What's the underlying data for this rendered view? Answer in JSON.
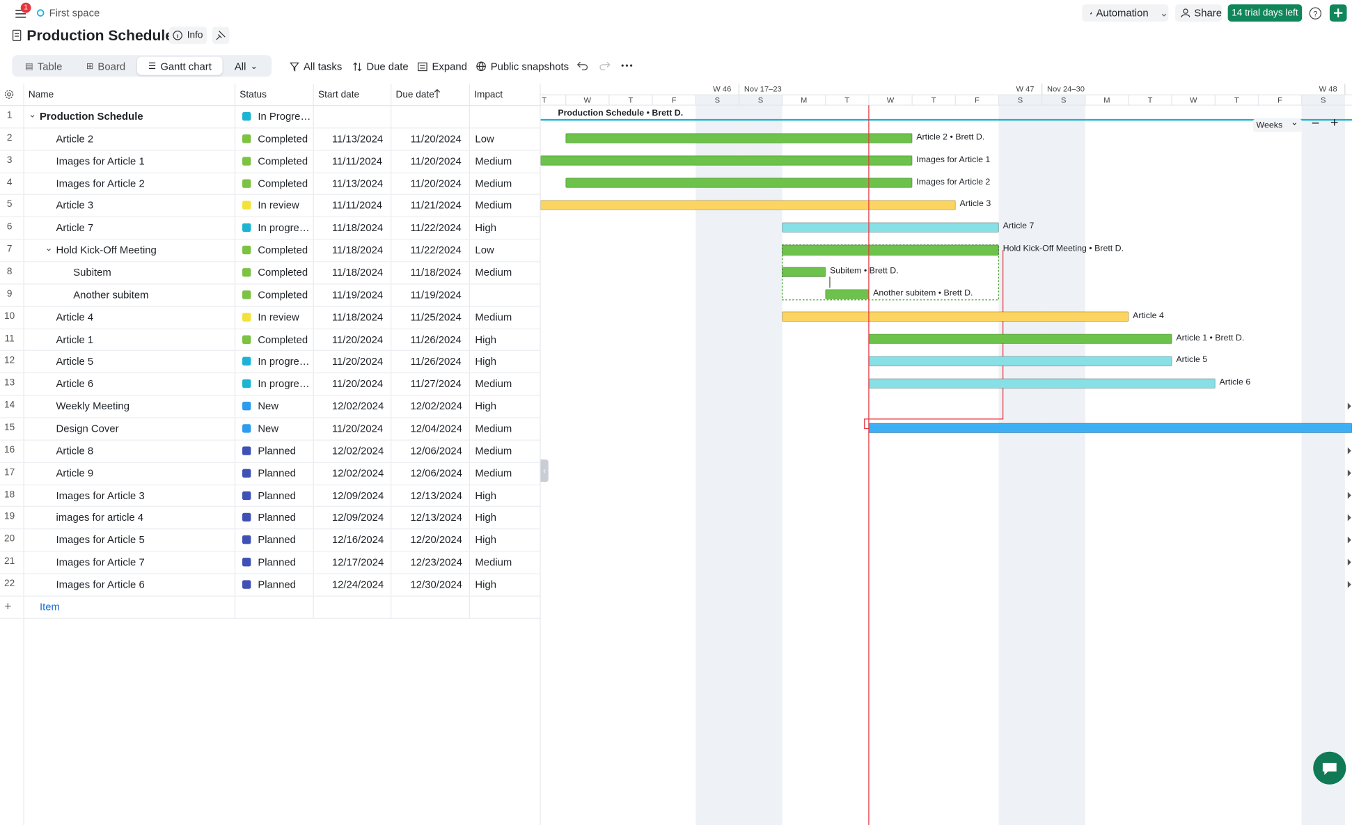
{
  "nav": {
    "badge": "1",
    "space": "First space"
  },
  "header": {
    "title": "Production Schedule",
    "info": "Info"
  },
  "top_buttons": {
    "automation": "Automation",
    "share": "Share",
    "trial": "14 trial days left"
  },
  "views": [
    "Table",
    "Board",
    "Gantt chart",
    "All"
  ],
  "toolbar": [
    "All tasks",
    "Due date",
    "Expand",
    "Public snapshots"
  ],
  "table": {
    "columns": [
      "Name",
      "Status",
      "Start date",
      "Due date",
      "Impact"
    ],
    "rows": [
      {
        "num": "1",
        "name": "Production Schedule",
        "status": "In Progre…",
        "status_color": "#1db4d4",
        "bar_label": "Production Schedule • Brett D."
      },
      {
        "num": "2",
        "name": "Article 2",
        "status": "Completed",
        "status_color": "#7cc243",
        "start": "11/13/2024",
        "due": "11/20/2024",
        "impact": "Low",
        "bar_color": "#6cc24a",
        "bar_label": "Article 2 • Brett D."
      },
      {
        "num": "3",
        "name": "Images for Article 1",
        "status": "Completed",
        "status_color": "#7cc243",
        "start": "11/11/2024",
        "due": "11/20/2024",
        "impact": "Medium",
        "bar_color": "#6cc24a",
        "bar_label": "Images for Article 1"
      },
      {
        "num": "4",
        "name": "Images for Article 2",
        "status": "Completed",
        "status_color": "#7cc243",
        "start": "11/13/2024",
        "due": "11/20/2024",
        "impact": "Medium",
        "bar_color": "#6cc24a",
        "bar_label": "Images for Article 2"
      },
      {
        "num": "5",
        "name": "Article 3",
        "status": "In review",
        "status_color": "#f3e23a",
        "start": "11/11/2024",
        "due": "11/21/2024",
        "impact": "Medium",
        "bar_color": "#fcd462",
        "bar_label": "Article 3"
      },
      {
        "num": "6",
        "name": "Article 7",
        "status": "In progre…",
        "status_color": "#1db4d4",
        "start": "11/18/2024",
        "due": "11/22/2024",
        "impact": "High",
        "bar_color": "#86e0e6",
        "bar_label": "Article 7"
      },
      {
        "num": "7",
        "name": "Hold Kick-Off Meeting",
        "status": "Completed",
        "status_color": "#7cc243",
        "start": "11/18/2024",
        "due": "11/22/2024",
        "impact": "Low",
        "bar_color": "#6cc24a",
        "bar_label": "Hold Kick-Off Meeting • Brett D."
      },
      {
        "num": "8",
        "name": "Subitem",
        "status": "Completed",
        "status_color": "#7cc243",
        "start": "11/18/2024",
        "due": "11/18/2024",
        "impact": "Medium",
        "bar_color": "#6cc24a",
        "bar_label": "Subitem • Brett D."
      },
      {
        "num": "9",
        "name": "Another subitem",
        "status": "Completed",
        "status_color": "#7cc243",
        "start": "11/19/2024",
        "due": "11/19/2024",
        "bar_color": "#6cc24a",
        "bar_label": "Another subitem • Brett D."
      },
      {
        "num": "10",
        "name": "Article 4",
        "status": "In review",
        "status_color": "#f3e23a",
        "start": "11/18/2024",
        "due": "11/25/2024",
        "impact": "Medium",
        "bar_color": "#fcd462",
        "bar_label": "Article 4"
      },
      {
        "num": "11",
        "name": "Article 1",
        "status": "Completed",
        "status_color": "#7cc243",
        "start": "11/20/2024",
        "due": "11/26/2024",
        "impact": "High",
        "bar_color": "#6cc24a",
        "bar_label": "Article 1 • Brett D."
      },
      {
        "num": "12",
        "name": "Article 5",
        "status": "In progre…",
        "status_color": "#1db4d4",
        "start": "11/20/2024",
        "due": "11/26/2024",
        "impact": "High",
        "bar_color": "#86e0e6",
        "bar_label": "Article 5"
      },
      {
        "num": "13",
        "name": "Article 6",
        "status": "In progre…",
        "status_color": "#1db4d4",
        "start": "11/20/2024",
        "due": "11/27/2024",
        "impact": "Medium",
        "bar_color": "#86e0e6",
        "bar_label": "Article 6"
      },
      {
        "num": "14",
        "name": "Weekly Meeting",
        "status": "New",
        "status_color": "#2d9bf0",
        "start": "12/02/2024",
        "due": "12/02/2024",
        "impact": "High",
        "bar_color": "#3db0f5"
      },
      {
        "num": "15",
        "name": "Design Cover",
        "status": "New",
        "status_color": "#2d9bf0",
        "start": "11/20/2024",
        "due": "12/04/2024",
        "impact": "Medium",
        "bar_color": "#3db0f5"
      },
      {
        "num": "16",
        "name": "Article 8",
        "status": "Planned",
        "status_color": "#3f51b5",
        "start": "12/02/2024",
        "due": "12/06/2024",
        "impact": "Medium",
        "bar_color": "#5c6bc0"
      },
      {
        "num": "17",
        "name": "Article 9",
        "status": "Planned",
        "status_color": "#3f51b5",
        "start": "12/02/2024",
        "due": "12/06/2024",
        "impact": "Medium",
        "bar_color": "#5c6bc0"
      },
      {
        "num": "18",
        "name": "Images for Article 3",
        "status": "Planned",
        "status_color": "#3f51b5",
        "start": "12/09/2024",
        "due": "12/13/2024",
        "impact": "High",
        "bar_color": "#5c6bc0"
      },
      {
        "num": "19",
        "name": "images for article 4",
        "status": "Planned",
        "status_color": "#3f51b5",
        "start": "12/09/2024",
        "due": "12/13/2024",
        "impact": "High",
        "bar_color": "#5c6bc0"
      },
      {
        "num": "20",
        "name": "Images for Article 5",
        "status": "Planned",
        "status_color": "#3f51b5",
        "start": "12/16/2024",
        "due": "12/20/2024",
        "impact": "High",
        "bar_color": "#5c6bc0"
      },
      {
        "num": "21",
        "name": "Images for Article 7",
        "status": "Planned",
        "status_color": "#3f51b5",
        "start": "12/17/2024",
        "due": "12/23/2024",
        "impact": "Medium",
        "bar_color": "#5c6bc0"
      },
      {
        "num": "22",
        "name": "Images for Article 6",
        "status": "Planned",
        "status_color": "#3f51b5",
        "start": "12/24/2024",
        "due": "12/30/2024",
        "impact": "High",
        "bar_color": "#5c6bc0"
      }
    ],
    "add_item": "Item"
  },
  "gantt": {
    "weeks": [
      "W 46",
      "Nov 17–23",
      "W 47",
      "Nov 24–30",
      "W 48"
    ],
    "days": [
      "T",
      "W",
      "T",
      "F",
      "S",
      "S",
      "M",
      "T",
      "W",
      "T",
      "F",
      "S",
      "S",
      "M",
      "T",
      "W",
      "T",
      "F",
      "S"
    ],
    "zoom": "Weeks"
  }
}
